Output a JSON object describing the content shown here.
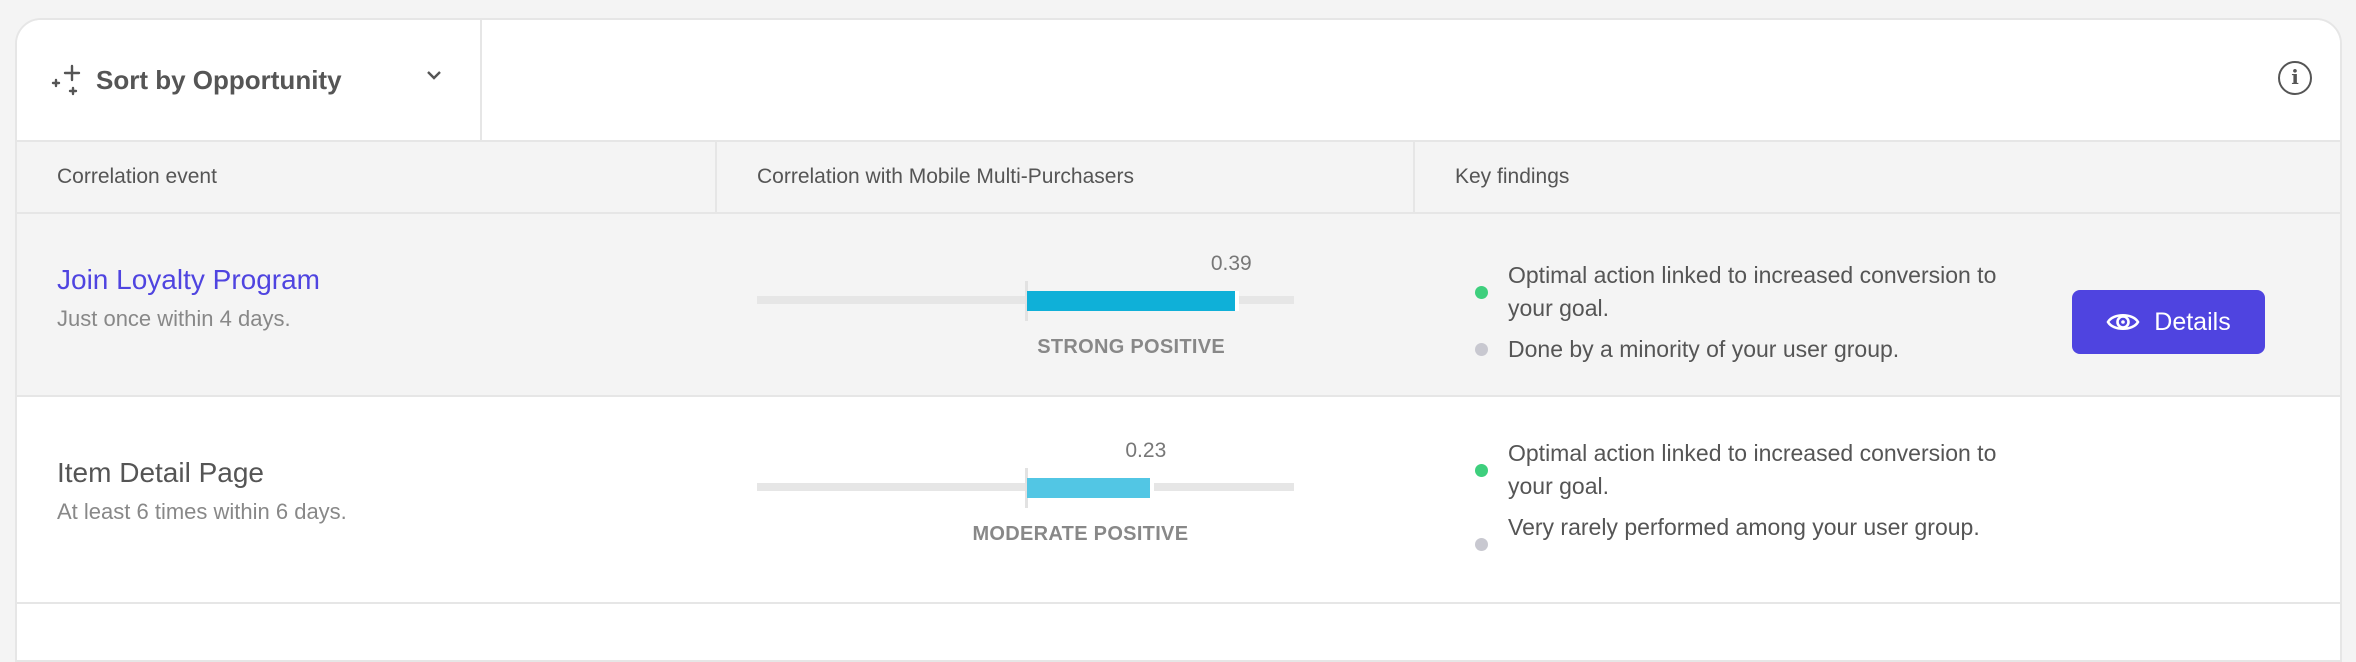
{
  "toolbar": {
    "sort_label": "Sort by Opportunity",
    "sort_icon": "sparkle-icon",
    "info_icon": "info-icon"
  },
  "table": {
    "headers": [
      "Correlation event",
      "Correlation with Mobile Multi-Purchasers",
      "Key findings"
    ],
    "scale": {
      "min": -0.5,
      "max": 0.5
    },
    "rows": [
      {
        "event": "Join Loyalty Program",
        "condition": "Just once within 4 days.",
        "value": 0.39,
        "value_label": "0.39",
        "strength": "STRONG POSITIVE",
        "bar_color": "#0fb0d8",
        "findings": [
          {
            "text": "Optimal action linked to increased conversion to your goal.",
            "color": "#3ecf7d"
          },
          {
            "text": "Done by a minority of your user group.",
            "color": "#c8c8d0"
          }
        ],
        "action": "Details"
      },
      {
        "event": "Item Detail Page",
        "condition": "At least 6 times within 6 days.",
        "value": 0.23,
        "value_label": "0.23",
        "strength": "MODERATE POSITIVE",
        "bar_color": "#52c6e4",
        "findings": [
          {
            "text": "Optimal action linked to increased conversion to your goal.",
            "color": "#3ecf7d"
          },
          {
            "text": "Very rarely performed among your user group.",
            "color": "#c8c8d0"
          }
        ]
      }
    ]
  },
  "colors": {
    "accent": "#4f44e0"
  }
}
